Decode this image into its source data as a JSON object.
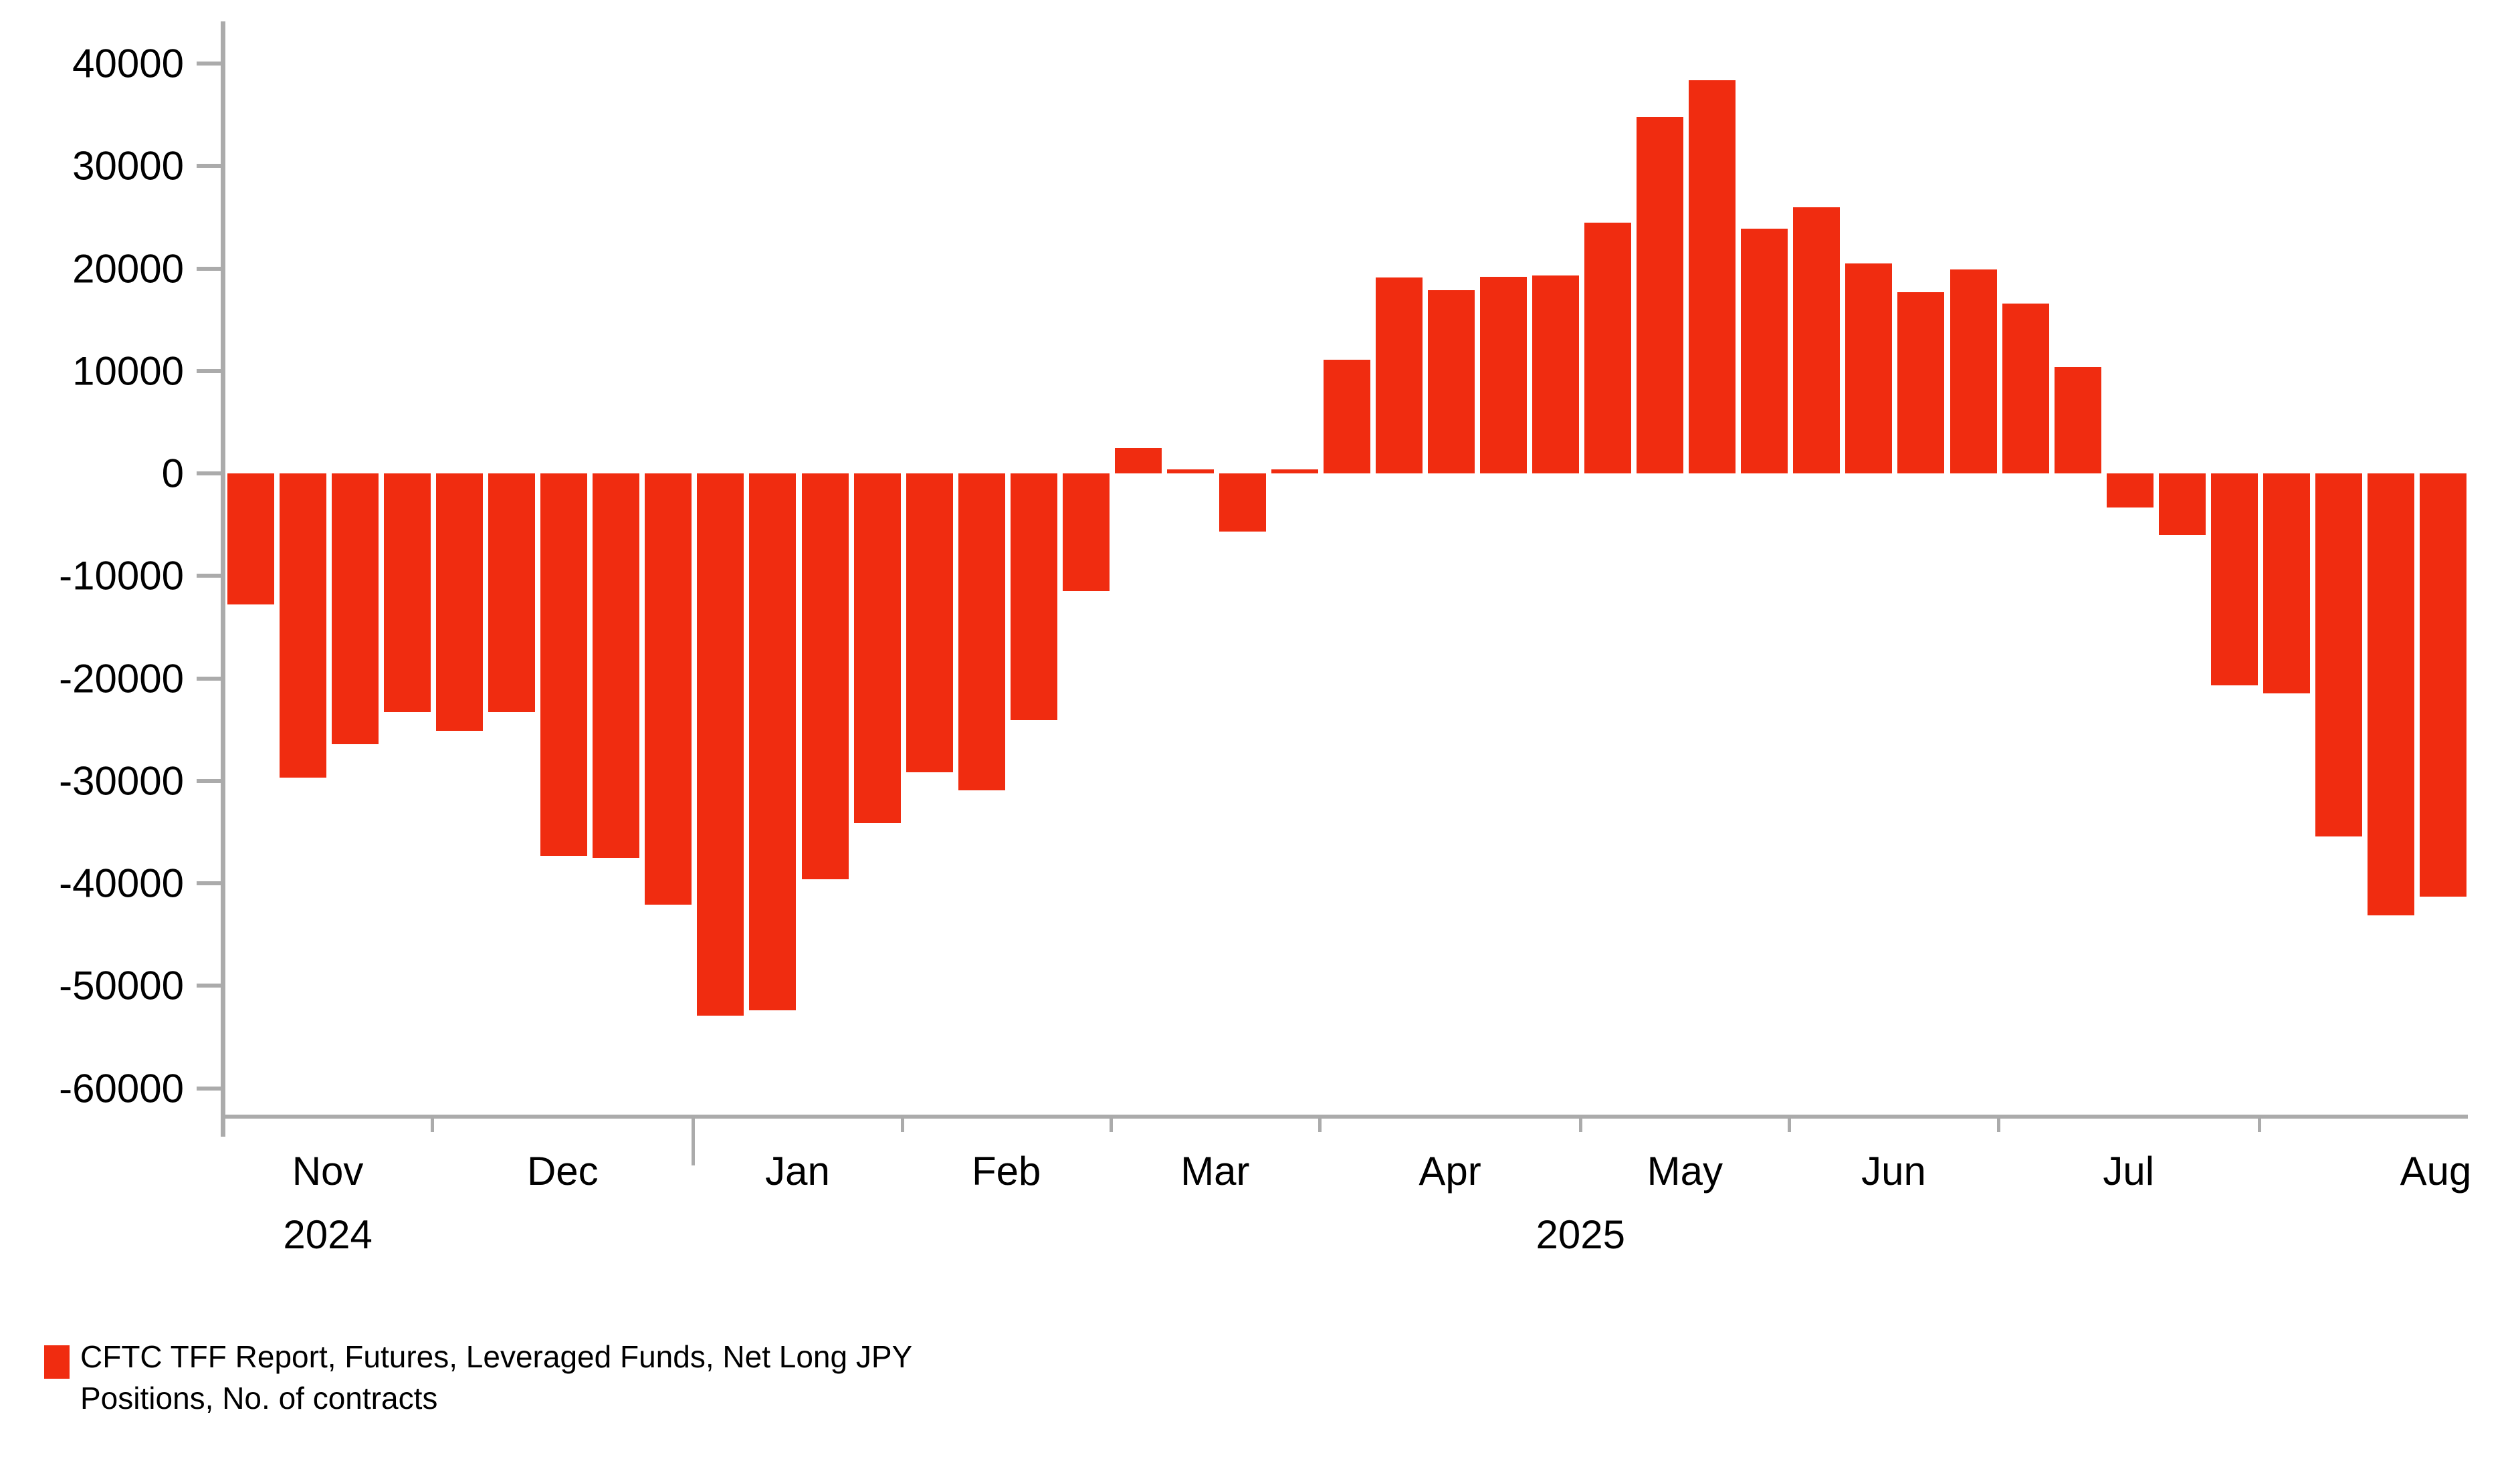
{
  "chart_data": {
    "type": "bar",
    "title": "",
    "grid": false,
    "legend_position": "bottom-left",
    "bar_color": "#F02C10",
    "axis_color": "#ABABAB",
    "text_color": "#000000",
    "y_axis": {
      "min": -60000,
      "max": 40000,
      "step": 10000,
      "tick_labels": [
        "40000",
        "30000",
        "20000",
        "10000",
        "0",
        "-10000",
        "-20000",
        "-30000",
        "-40000",
        "-50000",
        "-60000"
      ]
    },
    "series": [
      {
        "name": "CFTC TFF Report, Futures, Leveraged Funds, Net Long JPY Positions, No. of contracts",
        "values": [
          -12800,
          -29700,
          -26400,
          -23300,
          -25100,
          -23300,
          -37300,
          -37500,
          -42100,
          -52900,
          -52400,
          -39600,
          -34100,
          -29200,
          -30900,
          -24100,
          -11500,
          2500,
          400,
          -5700,
          400,
          11100,
          19100,
          17900,
          19200,
          19300,
          24500,
          34800,
          38400,
          23900,
          26000,
          20500,
          17700,
          19900,
          16600,
          10400,
          -3300,
          -6000,
          -20700,
          -21500,
          -35400,
          -43100,
          -41300
        ]
      }
    ],
    "months": [
      {
        "label": "Nov",
        "bars": 4,
        "year_boundary_after": false
      },
      {
        "label": "Dec",
        "bars": 5,
        "year_boundary_after": true
      },
      {
        "label": "Jan",
        "bars": 4,
        "year_boundary_after": false
      },
      {
        "label": "Feb",
        "bars": 4,
        "year_boundary_after": false
      },
      {
        "label": "Mar",
        "bars": 4,
        "year_boundary_after": false
      },
      {
        "label": "Apr",
        "bars": 5,
        "year_boundary_after": false
      },
      {
        "label": "May",
        "bars": 4,
        "year_boundary_after": false
      },
      {
        "label": "Jun",
        "bars": 4,
        "year_boundary_after": false
      },
      {
        "label": "Jul",
        "bars": 5,
        "year_boundary_after": false
      },
      {
        "label": "Aug",
        "bars": 4,
        "year_boundary_after": false
      }
    ],
    "years": [
      {
        "label": "2024",
        "anchor": "month-center",
        "month": "Nov"
      },
      {
        "label": "2025",
        "anchor": "month-boundary-after",
        "month": "Apr"
      }
    ]
  },
  "legend": {
    "lines": [
      "CFTC TFF Report, Futures, Leveraged Funds, Net Long JPY",
      "Positions, No. of contracts"
    ]
  }
}
